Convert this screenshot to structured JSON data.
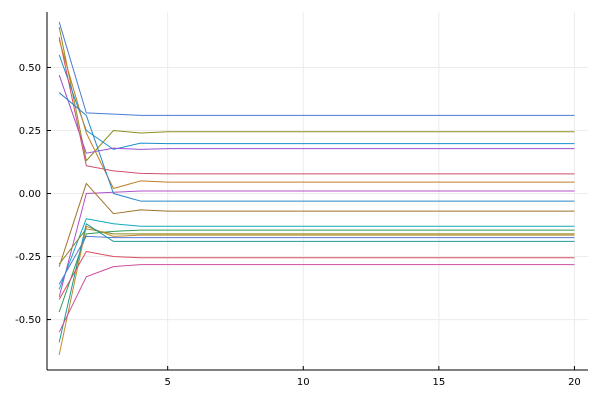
{
  "chart_data": {
    "type": "line",
    "title": "",
    "xlabel": "",
    "ylabel": "",
    "xlim": [
      0.55,
      20.5
    ],
    "ylim": [
      -0.7,
      0.72
    ],
    "x_ticks": [
      5,
      10,
      15,
      20
    ],
    "x_tick_labels": [
      "5",
      "10",
      "15",
      "20"
    ],
    "y_ticks": [
      -0.5,
      -0.25,
      0.0,
      0.25,
      0.5
    ],
    "y_tick_labels": [
      "-0.50",
      "-0.25",
      "0.00",
      "0.25",
      "0.50"
    ],
    "grid": true,
    "legend": "none",
    "x": [
      1,
      2,
      3,
      4,
      5,
      6,
      7,
      8,
      9,
      10,
      11,
      12,
      13,
      14,
      15,
      16,
      17,
      18,
      19,
      20
    ],
    "series": [
      {
        "color": "#4b7bd4",
        "values": [
          0.68,
          0.32,
          0.315,
          0.31,
          0.31,
          0.31,
          0.31,
          0.31,
          0.31,
          0.31,
          0.31,
          0.31,
          0.31,
          0.31,
          0.31,
          0.31,
          0.31,
          0.31,
          0.31,
          0.31
        ]
      },
      {
        "color": "#8f8f1f",
        "values": [
          0.66,
          0.13,
          0.25,
          0.24,
          0.245,
          0.245,
          0.245,
          0.245,
          0.245,
          0.245,
          0.245,
          0.245,
          0.245,
          0.245,
          0.245,
          0.245,
          0.245,
          0.245,
          0.245,
          0.245
        ]
      },
      {
        "color": "#1a8fcf",
        "values": [
          0.55,
          0.25,
          0.175,
          0.2,
          0.198,
          0.198,
          0.198,
          0.198,
          0.198,
          0.198,
          0.198,
          0.198,
          0.198,
          0.198,
          0.198,
          0.198,
          0.198,
          0.198,
          0.198,
          0.198
        ]
      },
      {
        "color": "#9b4fd0",
        "values": [
          0.47,
          0.16,
          0.18,
          0.175,
          0.178,
          0.178,
          0.178,
          0.178,
          0.178,
          0.178,
          0.178,
          0.178,
          0.178,
          0.178,
          0.178,
          0.178,
          0.178,
          0.178,
          0.178,
          0.178
        ]
      },
      {
        "color": "#d04f6f",
        "values": [
          0.62,
          0.11,
          0.09,
          0.08,
          0.078,
          0.078,
          0.078,
          0.078,
          0.078,
          0.078,
          0.078,
          0.078,
          0.078,
          0.078,
          0.078,
          0.078,
          0.078,
          0.078,
          0.078,
          0.078
        ]
      },
      {
        "color": "#c27f29",
        "values": [
          0.61,
          0.24,
          0.02,
          0.05,
          0.045,
          0.045,
          0.045,
          0.045,
          0.045,
          0.045,
          0.045,
          0.045,
          0.045,
          0.045,
          0.045,
          0.045,
          0.045,
          0.045,
          0.045,
          0.045
        ]
      },
      {
        "color": "#b44fc8",
        "values": [
          -0.41,
          0.0,
          0.005,
          0.01,
          0.01,
          0.01,
          0.01,
          0.01,
          0.01,
          0.01,
          0.01,
          0.01,
          0.01,
          0.01,
          0.01,
          0.01,
          0.01,
          0.01,
          0.01,
          0.01
        ]
      },
      {
        "color": "#2a86c8",
        "values": [
          0.4,
          0.31,
          0.0,
          -0.03,
          -0.03,
          -0.03,
          -0.03,
          -0.03,
          -0.03,
          -0.03,
          -0.03,
          -0.03,
          -0.03,
          -0.03,
          -0.03,
          -0.03,
          -0.03,
          -0.03,
          -0.03,
          -0.03
        ]
      },
      {
        "color": "#a0722a",
        "values": [
          -0.29,
          0.04,
          -0.08,
          -0.065,
          -0.07,
          -0.07,
          -0.07,
          -0.07,
          -0.07,
          -0.07,
          -0.07,
          -0.07,
          -0.07,
          -0.07,
          -0.07,
          -0.07,
          -0.07,
          -0.07,
          -0.07,
          -0.07
        ]
      },
      {
        "color": "#12a8c0",
        "values": [
          -0.38,
          -0.1,
          -0.12,
          -0.13,
          -0.13,
          -0.13,
          -0.13,
          -0.13,
          -0.13,
          -0.13,
          -0.13,
          -0.13,
          -0.13,
          -0.13,
          -0.13,
          -0.13,
          -0.13,
          -0.13,
          -0.13,
          -0.13
        ]
      },
      {
        "color": "#2f9a5a",
        "values": [
          -0.47,
          -0.16,
          -0.15,
          -0.145,
          -0.145,
          -0.145,
          -0.145,
          -0.145,
          -0.145,
          -0.145,
          -0.145,
          -0.145,
          -0.145,
          -0.145,
          -0.145,
          -0.145,
          -0.145,
          -0.145,
          -0.145,
          -0.145
        ]
      },
      {
        "color": "#8a8a24",
        "values": [
          -0.28,
          -0.14,
          -0.16,
          -0.16,
          -0.16,
          -0.16,
          -0.16,
          -0.16,
          -0.16,
          -0.16,
          -0.16,
          -0.16,
          -0.16,
          -0.16,
          -0.16,
          -0.16,
          -0.16,
          -0.16,
          -0.16,
          -0.16
        ]
      },
      {
        "color": "#c08a2a",
        "values": [
          -0.64,
          -0.13,
          -0.17,
          -0.165,
          -0.165,
          -0.165,
          -0.165,
          -0.165,
          -0.165,
          -0.165,
          -0.165,
          -0.165,
          -0.165,
          -0.165,
          -0.165,
          -0.165,
          -0.165,
          -0.165,
          -0.165,
          -0.165
        ]
      },
      {
        "color": "#5b7ad8",
        "values": [
          -0.36,
          -0.17,
          -0.175,
          -0.175,
          -0.175,
          -0.175,
          -0.175,
          -0.175,
          -0.175,
          -0.175,
          -0.175,
          -0.175,
          -0.175,
          -0.175,
          -0.175,
          -0.175,
          -0.175,
          -0.175,
          -0.175,
          -0.175
        ]
      },
      {
        "color": "#1f9a9a",
        "values": [
          -0.59,
          -0.12,
          -0.19,
          -0.19,
          -0.19,
          -0.19,
          -0.19,
          -0.19,
          -0.19,
          -0.19,
          -0.19,
          -0.19,
          -0.19,
          -0.19,
          -0.19,
          -0.19,
          -0.19,
          -0.19,
          -0.19,
          -0.19
        ]
      },
      {
        "color": "#d84f60",
        "values": [
          -0.42,
          -0.23,
          -0.25,
          -0.255,
          -0.255,
          -0.255,
          -0.255,
          -0.255,
          -0.255,
          -0.255,
          -0.255,
          -0.255,
          -0.255,
          -0.255,
          -0.255,
          -0.255,
          -0.255,
          -0.255,
          -0.255,
          -0.255
        ]
      },
      {
        "color": "#cf4f9a",
        "values": [
          -0.55,
          -0.33,
          -0.29,
          -0.282,
          -0.282,
          -0.282,
          -0.282,
          -0.282,
          -0.282,
          -0.282,
          -0.282,
          -0.282,
          -0.282,
          -0.282,
          -0.282,
          -0.282,
          -0.282,
          -0.282,
          -0.282,
          -0.282
        ]
      }
    ]
  }
}
